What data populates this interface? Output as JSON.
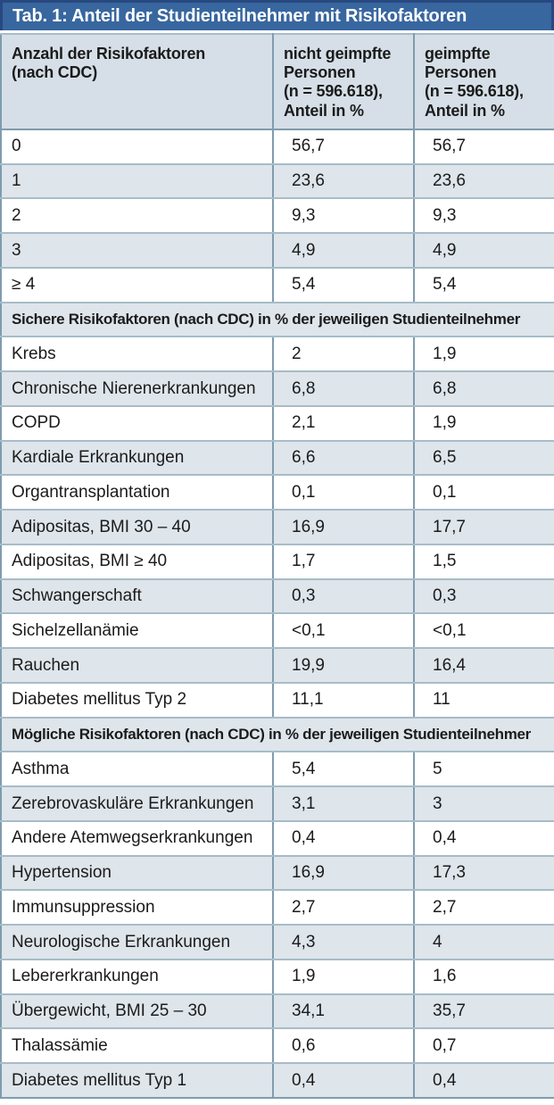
{
  "title": "Tab. 1: Anteil der Studienteilnehmer mit Risikofaktoren",
  "columns": [
    "Anzahl der Risikofaktoren\n(nach CDC)",
    "nicht geimpfte\nPersonen\n(n = 596.618),\nAnteil in %",
    "geimpfte\nPersonen\n(n = 596.618),\nAnteil in %"
  ],
  "sections": [
    {
      "header": null,
      "rows": [
        {
          "label": "0",
          "unvaccinated": "56,7",
          "vaccinated": "56,7"
        },
        {
          "label": "1",
          "unvaccinated": "23,6",
          "vaccinated": "23,6"
        },
        {
          "label": "2",
          "unvaccinated": "9,3",
          "vaccinated": "9,3"
        },
        {
          "label": "3",
          "unvaccinated": "4,9",
          "vaccinated": "4,9"
        },
        {
          "label": "≥ 4",
          "unvaccinated": "5,4",
          "vaccinated": "5,4"
        }
      ]
    },
    {
      "header": "Sichere Risikofaktoren (nach CDC) in % der jeweiligen Studienteilnehmer",
      "rows": [
        {
          "label": "Krebs",
          "unvaccinated": "2",
          "vaccinated": "1,9"
        },
        {
          "label": "Chronische Nierenerkrankungen",
          "unvaccinated": "6,8",
          "vaccinated": "6,8"
        },
        {
          "label": "COPD",
          "unvaccinated": "2,1",
          "vaccinated": "1,9"
        },
        {
          "label": "Kardiale Erkrankungen",
          "unvaccinated": "6,6",
          "vaccinated": "6,5"
        },
        {
          "label": "Organtransplantation",
          "unvaccinated": "0,1",
          "vaccinated": "0,1"
        },
        {
          "label": "Adipositas, BMI 30 – 40",
          "unvaccinated": "16,9",
          "vaccinated": "17,7"
        },
        {
          "label": "Adipositas, BMI ≥ 40",
          "unvaccinated": "1,7",
          "vaccinated": "1,5"
        },
        {
          "label": "Schwangerschaft",
          "unvaccinated": "0,3",
          "vaccinated": "0,3"
        },
        {
          "label": "Sichelzellanämie",
          "unvaccinated": "<0,1",
          "vaccinated": "<0,1"
        },
        {
          "label": "Rauchen",
          "unvaccinated": "19,9",
          "vaccinated": "16,4"
        },
        {
          "label": "Diabetes mellitus Typ 2",
          "unvaccinated": "11,1",
          "vaccinated": "11"
        }
      ]
    },
    {
      "header": "Mögliche Risikofaktoren (nach CDC) in % der jeweiligen Studienteilnehmer",
      "rows": [
        {
          "label": "Asthma",
          "unvaccinated": "5,4",
          "vaccinated": "5"
        },
        {
          "label": "Zerebrovaskuläre Erkrankungen",
          "unvaccinated": "3,1",
          "vaccinated": "3"
        },
        {
          "label": "Andere Atemwegserkrankungen",
          "unvaccinated": "0,4",
          "vaccinated": "0,4"
        },
        {
          "label": "Hypertension",
          "unvaccinated": "16,9",
          "vaccinated": "17,3"
        },
        {
          "label": "Immunsuppression",
          "unvaccinated": "2,7",
          "vaccinated": "2,7"
        },
        {
          "label": "Neurologische Erkrankungen",
          "unvaccinated": "4,3",
          "vaccinated": "4"
        },
        {
          "label": "Lebererkrankungen",
          "unvaccinated": "1,9",
          "vaccinated": "1,6"
        },
        {
          "label": "Übergewicht, BMI 25 – 30",
          "unvaccinated": "34,1",
          "vaccinated": "35,7"
        },
        {
          "label": "Thalassämie",
          "unvaccinated": "0,6",
          "vaccinated": "0,7"
        },
        {
          "label": "Diabetes mellitus Typ 1",
          "unvaccinated": "0,4",
          "vaccinated": "0,4"
        }
      ]
    }
  ],
  "colors": {
    "title_bar_bg": "#38669f",
    "title_bar_border": "#27497f",
    "title_text": "#ffffff",
    "header_bg": "#d6dfe7",
    "row_alt_bg": "#dee5eb",
    "row_bg": "#ffffff",
    "grid_strong": "#7f9cae",
    "grid_light": "#a7bcc8",
    "text": "#1b1b1b"
  },
  "chart_data": {
    "type": "table",
    "title": "Tab. 1: Anteil der Studienteilnehmer mit Risikofaktoren",
    "note": "values are percentages (Anteil in %), decimal comma notation, n = 596.618 in both groups"
  }
}
